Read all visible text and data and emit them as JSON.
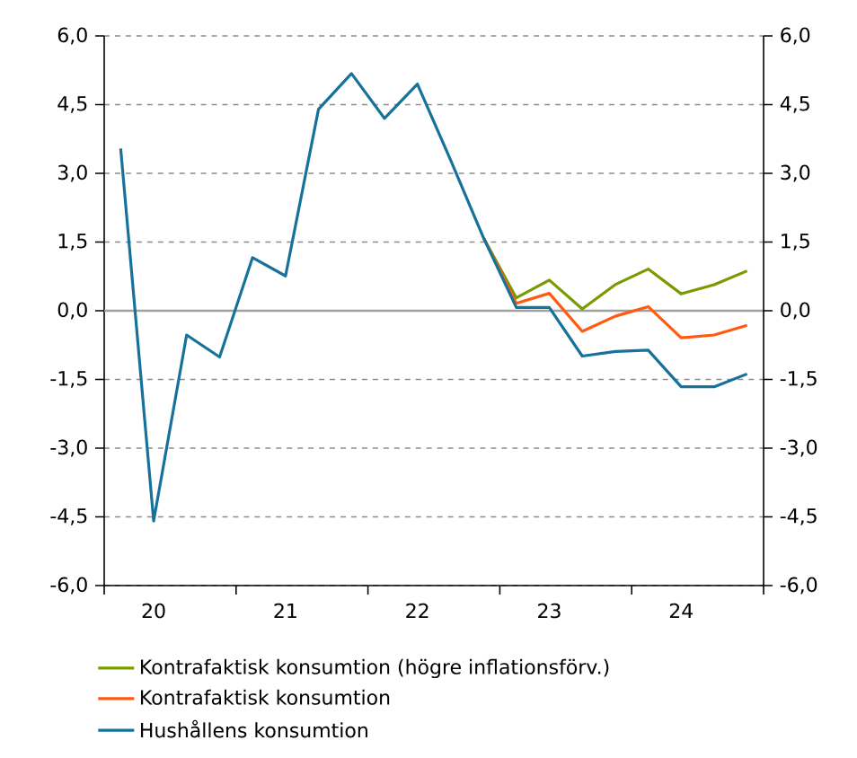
{
  "chart_data": {
    "type": "line",
    "categories": [
      null,
      "20",
      null,
      null,
      null,
      "21",
      null,
      null,
      null,
      "22",
      null,
      null,
      null,
      "23",
      null,
      null,
      null,
      "24",
      null,
      null
    ],
    "series": [
      {
        "name": "Kontrafaktisk konsumtion (högre inflationsförv.)",
        "color": "#7a9a01",
        "values": [
          null,
          null,
          null,
          null,
          null,
          null,
          null,
          null,
          null,
          null,
          null,
          1.6,
          0.28,
          0.67,
          0.04,
          0.57,
          0.91,
          0.37,
          0.57,
          0.87
        ]
      },
      {
        "name": "Kontrafaktisk konsumtion",
        "color": "#ff5a0f",
        "values": [
          null,
          null,
          null,
          null,
          null,
          null,
          null,
          null,
          null,
          null,
          null,
          1.6,
          0.16,
          0.38,
          -0.45,
          -0.12,
          0.09,
          -0.59,
          -0.53,
          -0.32
        ]
      },
      {
        "name": "Hushållens konsumtion",
        "color": "#16729a",
        "values": [
          3.54,
          -4.59,
          -0.53,
          -1.01,
          1.16,
          0.76,
          4.4,
          5.18,
          4.2,
          4.95,
          3.3,
          1.6,
          0.07,
          0.07,
          -0.99,
          -0.89,
          -0.86,
          -1.66,
          -1.66,
          -1.38
        ]
      }
    ],
    "ylim": [
      -6,
      6
    ],
    "yticks": [
      {
        "value": -6,
        "label": "-6,0"
      },
      {
        "value": -4.5,
        "label": "-4,5"
      },
      {
        "value": -3,
        "label": "-3,0"
      },
      {
        "value": -1.5,
        "label": "-1,5"
      },
      {
        "value": 0,
        "label": "0,0"
      },
      {
        "value": 1.5,
        "label": "1,5"
      },
      {
        "value": 3,
        "label": "3,0"
      },
      {
        "value": 4.5,
        "label": "4,5"
      },
      {
        "value": 6,
        "label": "6,0"
      }
    ],
    "y2lim": [
      -6,
      6
    ],
    "y2ticks": [
      {
        "value": -6,
        "label": "-6,0"
      },
      {
        "value": -4.5,
        "label": "-4,5"
      },
      {
        "value": -3,
        "label": "-3,0"
      },
      {
        "value": -1.5,
        "label": "-1,5"
      },
      {
        "value": 0,
        "label": "0,0"
      },
      {
        "value": 1.5,
        "label": "1,5"
      },
      {
        "value": 3,
        "label": "3,0"
      },
      {
        "value": 4.5,
        "label": "4,5"
      },
      {
        "value": 6,
        "label": "6,0"
      }
    ],
    "ref_lines": [
      {
        "axis": "y",
        "value": 0,
        "color": "#a0a0a0",
        "line_style": "solid"
      }
    ],
    "grid": "y",
    "legend": "bottom",
    "marker": "none",
    "line_style": "solid"
  }
}
